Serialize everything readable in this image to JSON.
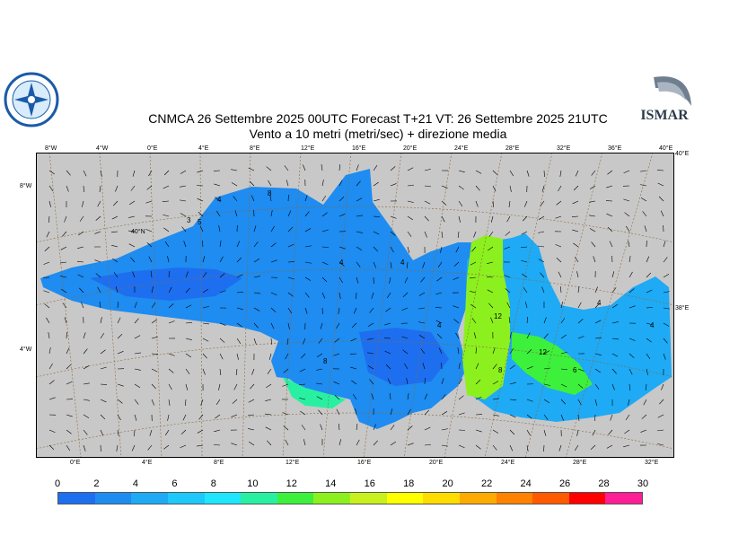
{
  "title": {
    "line1": "CNMCA 26 Settembre 2025 00UTC Forecast T+21 VT: 26 Settembre 2025 21UTC",
    "line2": "Vento a 10 metri (metri/sec) + direzione media"
  },
  "logos": {
    "left_text": "SERVIZIO METEOROLOGICO",
    "right_text": "ISMAR"
  },
  "map": {
    "colors": {
      "land": "#c8c8c8",
      "frame": "#000000",
      "graticule": "#8b6a3e",
      "arrow": "#000000"
    },
    "top_lon_labels": [
      "8°W",
      "4°W",
      "0°E",
      "4°E",
      "8°E",
      "12°E",
      "16°E",
      "20°E",
      "24°E",
      "28°E",
      "32°E",
      "36°E",
      "40°E"
    ],
    "bottom_lon_labels": [
      "0°E",
      "4°E",
      "8°E",
      "12°E",
      "16°E",
      "20°E",
      "24°E",
      "28°E",
      "32°E"
    ],
    "left_lat_labels": [
      "8°W",
      "40°N",
      "4°W"
    ],
    "right_lat_labels": [
      "40°E",
      "38°E"
    ],
    "contour_labels": [
      "4",
      "8",
      "3",
      "5",
      "4",
      "4",
      "4",
      "12",
      "12",
      "8",
      "8",
      "4",
      "4",
      "6"
    ]
  },
  "colorbar": {
    "ticks": [
      "0",
      "2",
      "4",
      "6",
      "8",
      "10",
      "12",
      "14",
      "16",
      "18",
      "20",
      "22",
      "24",
      "26",
      "28",
      "30"
    ],
    "colors": [
      "#1e6ef0",
      "#1e8cf0",
      "#1eaaf5",
      "#1ec8fa",
      "#1ee6ff",
      "#28f0a0",
      "#3cf03c",
      "#8cf01e",
      "#c8f01e",
      "#ffff00",
      "#ffdc00",
      "#ffaa00",
      "#ff8200",
      "#ff5a00",
      "#ff0000",
      "#ff1e96"
    ]
  }
}
